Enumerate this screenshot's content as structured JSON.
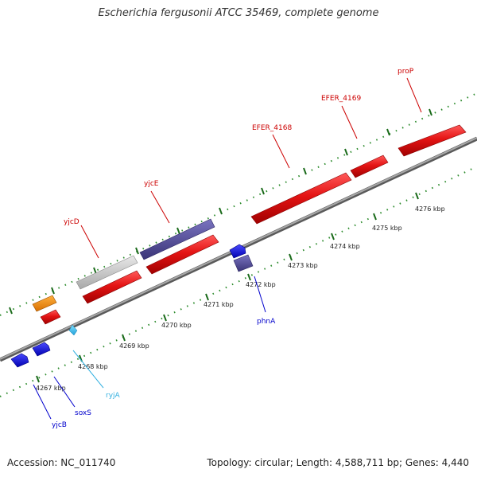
{
  "title": "Escherichia fergusonii ATCC 35469, complete genome",
  "footer": {
    "accession": "Accession: NC_011740",
    "summary": "Topology: circular; Length: 4,588,711 bp; Genes: 4,440"
  },
  "ticks": [
    "4267 kbp",
    "4268 kbp",
    "4269 kbp",
    "4270 kbp",
    "4271 kbp",
    "4272 kbp",
    "4273 kbp",
    "4274 kbp",
    "4275 kbp",
    "4276 kbp"
  ],
  "gene_labels": {
    "yjcD": "yjcD",
    "yjcE": "yjcE",
    "EFER_4168": "EFER_4168",
    "EFER_4169": "EFER_4169",
    "proP": "proP",
    "phnA": "phnA",
    "ryjA": "ryjA",
    "soxS": "soxS",
    "yjcB": "yjcB"
  },
  "colors": {
    "forward_gene": "#e01010",
    "pseudo_gene": "#c8c8c8",
    "other_gene": "#f08a00",
    "navy_gene": "#4b4590",
    "reverse_gene": "#1414d8",
    "rna_gene": "#40c0e8",
    "label_red": "#cc0000",
    "label_blue": "#0000cc",
    "label_cyan": "#33b0e0",
    "backbone": "#808080",
    "tick_dots": "#1a7a1a"
  }
}
